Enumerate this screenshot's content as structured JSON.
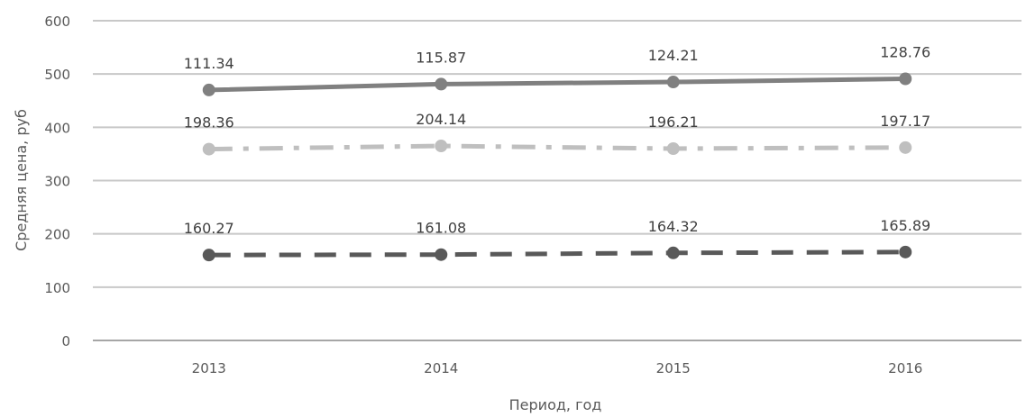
{
  "chart_data": {
    "type": "line",
    "xlabel": "Период, год",
    "ylabel": "Средняя цена, руб",
    "categories": [
      "2013",
      "2014",
      "2015",
      "2016"
    ],
    "ylim": [
      0,
      600
    ],
    "yticks": [
      0,
      100,
      200,
      300,
      400,
      500,
      600
    ],
    "grid": true,
    "series": [
      {
        "values": [
          470,
          481,
          485,
          491
        ],
        "data_labels": [
          "111.34",
          "115.87",
          "124.21",
          "128.76"
        ],
        "color": "#808080",
        "line_style": "solid"
      },
      {
        "values": [
          359,
          365,
          360,
          362
        ],
        "data_labels": [
          "198.36",
          "204.14",
          "196.21",
          "197.17"
        ],
        "color": "#bfbfbf",
        "line_style": "dash-dot"
      },
      {
        "values": [
          160.27,
          161.08,
          164.32,
          165.89
        ],
        "data_labels": [
          "160.27",
          "161.08",
          "164.32",
          "165.89"
        ],
        "color": "#595959",
        "line_style": "dashed"
      }
    ]
  }
}
